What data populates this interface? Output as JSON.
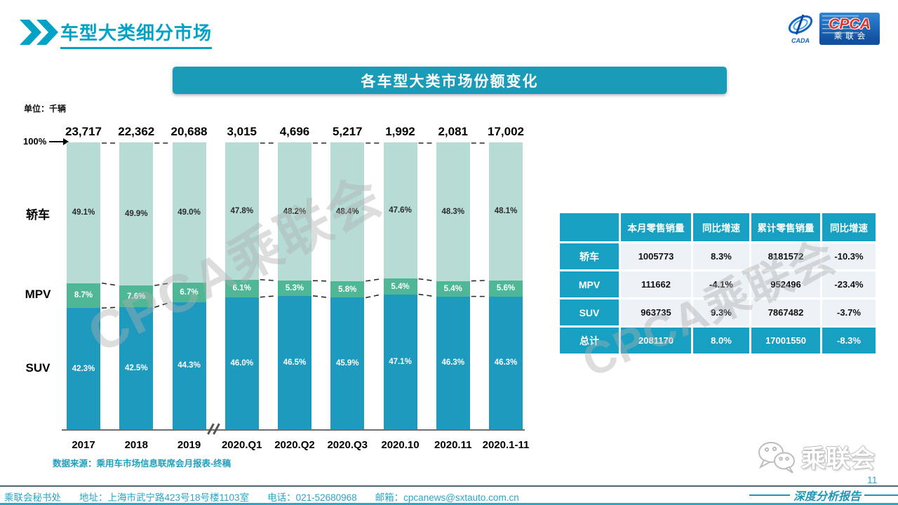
{
  "header": {
    "title": "车型大类细分市场"
  },
  "logo": {
    "cpca": "CPCA",
    "sub": "乘联会",
    "cada": "CADA"
  },
  "banner": {
    "title": "各车型大类市场份额变化"
  },
  "chart_data": {
    "type": "stacked-bar-100pct",
    "unit_label": "单位：千辆",
    "axis_top_label": "100%",
    "categories": [
      "2017",
      "2018",
      "2019",
      "2020.Q1",
      "2020.Q2",
      "2020.Q3",
      "2020.10",
      "2020.11",
      "2020.1-11"
    ],
    "totals": [
      "23,717",
      "22,362",
      "20,688",
      "3,015",
      "4,696",
      "5,217",
      "1,992",
      "2,081",
      "17,002"
    ],
    "series": [
      {
        "name": "轿车",
        "color": "#b7dcd6",
        "label_color": "#2b2b2b",
        "values": [
          49.1,
          49.9,
          49.0,
          47.8,
          48.2,
          48.4,
          47.6,
          48.3,
          48.1
        ]
      },
      {
        "name": "MPV",
        "color": "#4fb795",
        "label_color": "#ffffff",
        "values": [
          8.7,
          7.6,
          6.7,
          6.1,
          5.3,
          5.8,
          5.4,
          5.4,
          5.6
        ]
      },
      {
        "name": "SUV",
        "color": "#1d9abd",
        "label_color": "#ffffff",
        "values": [
          42.3,
          42.5,
          44.3,
          46.0,
          46.5,
          45.9,
          47.1,
          46.3,
          46.3
        ]
      }
    ],
    "axis_break_between": [
      "2019",
      "2020.Q1"
    ],
    "ylim": [
      0,
      100
    ],
    "grid": false,
    "source": "数据来源：乘用车市场信息联席会月报表-终稿"
  },
  "table": {
    "headers": [
      "",
      "本月零售销量",
      "同比增速",
      "累计零售销量",
      "同比增速"
    ],
    "rows": [
      {
        "label": "轿车",
        "cells": [
          "1005773",
          "8.3%",
          "8181572",
          "-10.3%"
        ],
        "total": false
      },
      {
        "label": "MPV",
        "cells": [
          "111662",
          "-4.1%",
          "952496",
          "-23.4%"
        ],
        "total": false
      },
      {
        "label": "SUV",
        "cells": [
          "963735",
          "9.3%",
          "7867482",
          "-3.7%"
        ],
        "total": false
      },
      {
        "label": "总计",
        "cells": [
          "2081170",
          "8.0%",
          "17001550",
          "-8.3%"
        ],
        "total": true
      }
    ]
  },
  "watermark": {
    "text": "CPCA乘联会"
  },
  "footer": {
    "org": "乘联会秘书处",
    "address": "地址：上海市武宁路423号18号楼1103室",
    "phone": "电话：021-52680968",
    "email": "邮箱：cpcanews@sxtauto.com.cn"
  },
  "bottom_right": {
    "wechat_label": "乘联会",
    "report_label": "深度分析报告",
    "page_number": "11"
  },
  "colors": {
    "accent_teal": "#00a2c6",
    "banner_teal": "#1a9cb8",
    "table_teal": "#17a0c1",
    "footer_teal": "#2aa4c6",
    "cpca_red": "#e3342a",
    "cpca_blue": "#11509f"
  }
}
